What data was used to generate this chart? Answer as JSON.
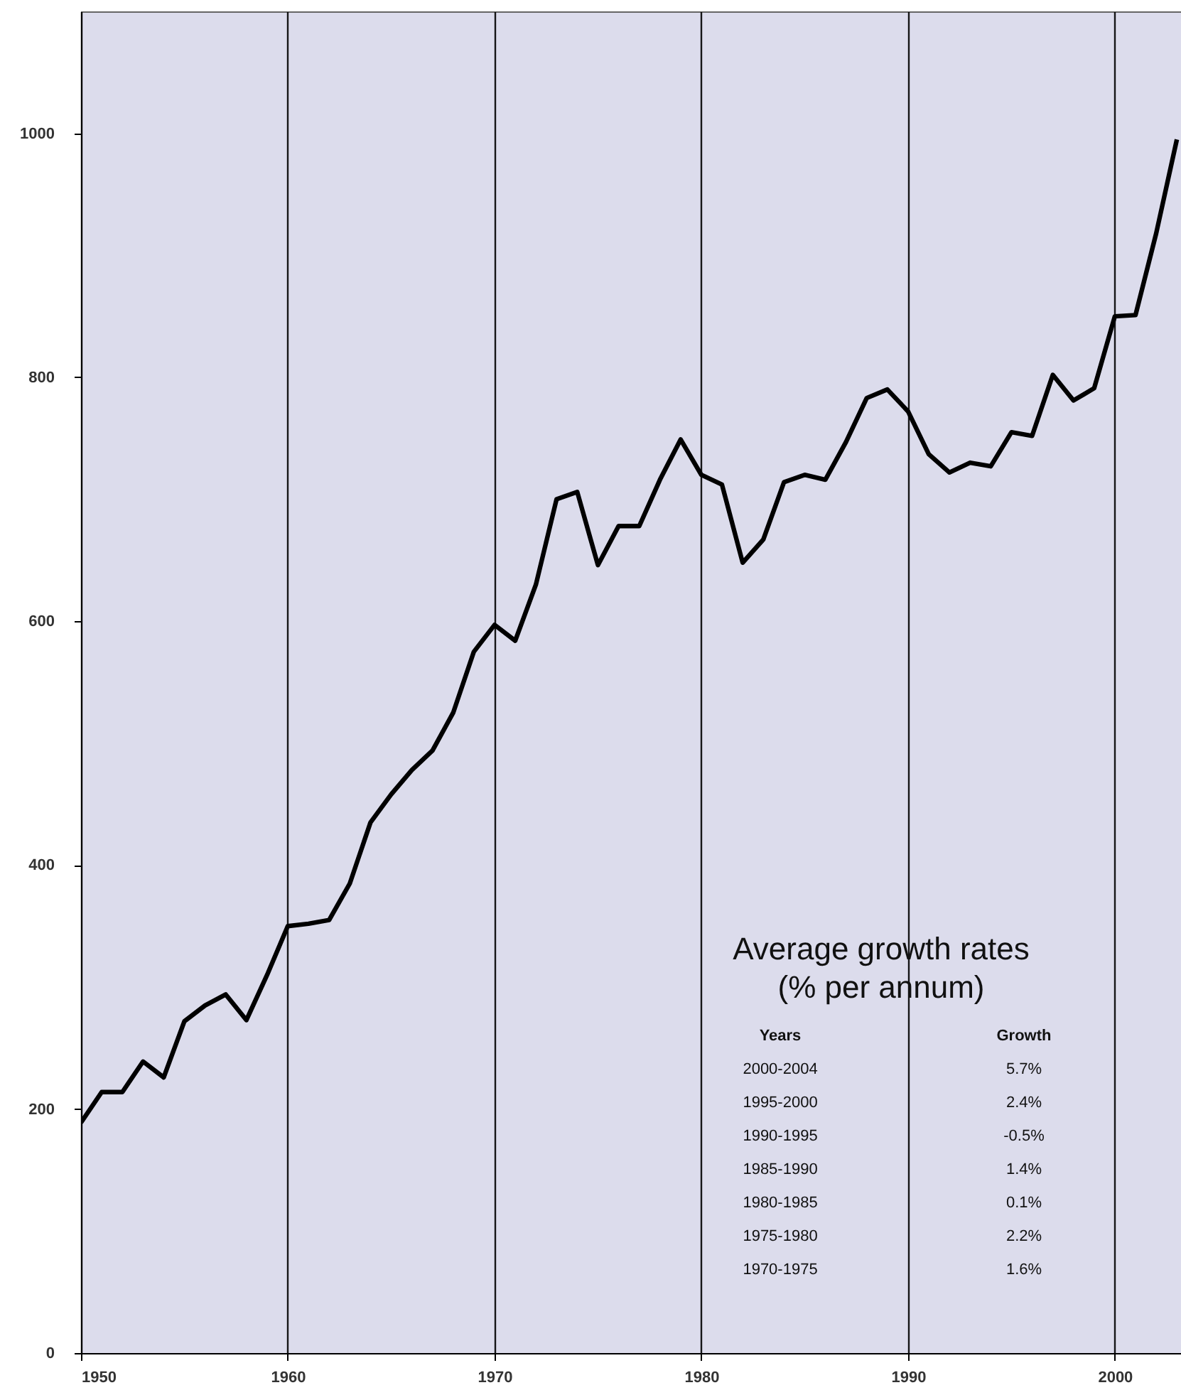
{
  "chart_data": {
    "type": "line",
    "x": [
      1950,
      1951,
      1952,
      1953,
      1954,
      1955,
      1956,
      1957,
      1958,
      1959,
      1960,
      1961,
      1962,
      1963,
      1964,
      1965,
      1966,
      1967,
      1968,
      1969,
      1970,
      1971,
      1972,
      1973,
      1974,
      1975,
      1976,
      1977,
      1978,
      1979,
      1980,
      1981,
      1982,
      1983,
      1984,
      1985,
      1986,
      1987,
      1988,
      1989,
      1990,
      1991,
      1992,
      1993,
      1994,
      1995,
      1996,
      1997,
      1998,
      1999,
      2000,
      2001,
      2002,
      2003
    ],
    "series": [
      {
        "color": "#000000",
        "values": [
          189,
          214,
          214,
          239,
          226,
          272,
          285,
          294,
          273,
          310,
          350,
          352,
          355,
          385,
          435,
          458,
          478,
          494,
          525,
          575,
          597,
          584,
          630,
          700,
          706,
          646,
          678,
          678,
          716,
          749,
          720,
          712,
          648,
          667,
          714,
          720,
          716,
          747,
          783,
          790,
          772,
          737,
          722,
          730,
          727,
          755,
          752,
          802,
          781,
          791,
          850,
          851,
          918,
          995
        ]
      }
    ],
    "xlim": [
      1950,
      2003.2
    ],
    "xticks": [
      1950,
      1960,
      1970,
      1980,
      1990,
      2000
    ],
    "ylim": [
      0,
      1100
    ],
    "yticks": [
      0,
      200,
      400,
      600,
      800,
      1000
    ],
    "grid": "x",
    "line_style": "solid",
    "marker": "none",
    "annotations": [
      "Average growth rates",
      "(% per annum)",
      "Years",
      "Growth",
      "2000-2004",
      "5.7%",
      "1995-2000",
      "2.4%",
      "1990-1995",
      "-0.5%",
      "1985-1990",
      "1.4%",
      "1980-1985",
      "0.1%",
      "1975-1980",
      "2.2%",
      "1970-1975",
      "1.6%"
    ]
  }
}
